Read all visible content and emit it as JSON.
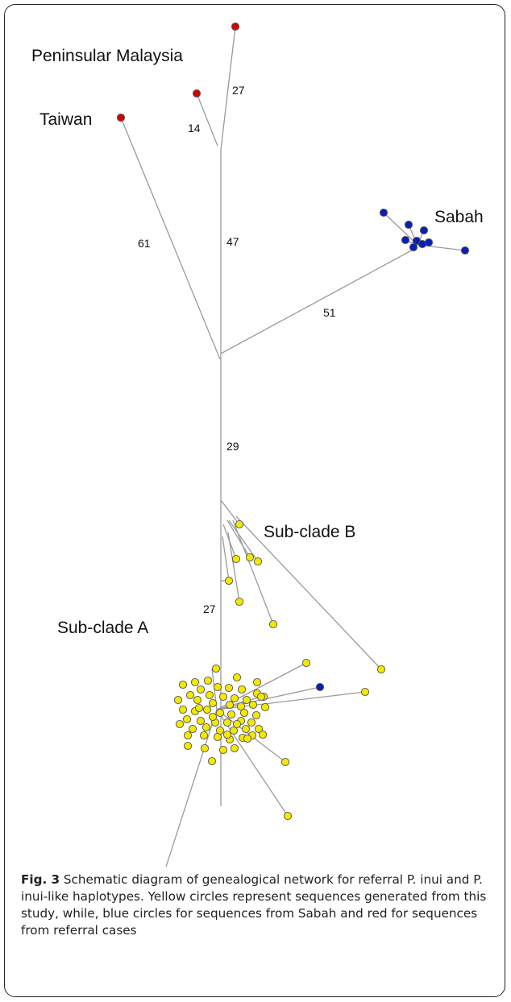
{
  "figure": {
    "labels": {
      "peninsular_malaysia": "Peninsular Malaysia",
      "taiwan": "Taiwan",
      "sabah": "Sabah",
      "subclade_a": "Sub-clade A",
      "subclade_b": "Sub-clade B"
    },
    "mutation_counts": [
      "27",
      "14",
      "61",
      "47",
      "51",
      "29",
      "27"
    ],
    "colors": {
      "this_study": "#f3e800",
      "sabah": "#0a1fb3",
      "referral": "#d40000",
      "node_border": "#555555",
      "edge": "#9a9a9a"
    }
  },
  "caption": {
    "fig_number": "Fig. 3",
    "text": " Schematic diagram of genealogical network for referral P. inui and P. inui-like haplotypes. Yellow circles represent sequences generated from this study, while, blue circles for sequences from Sabah and red for sequences from referral cases"
  }
}
